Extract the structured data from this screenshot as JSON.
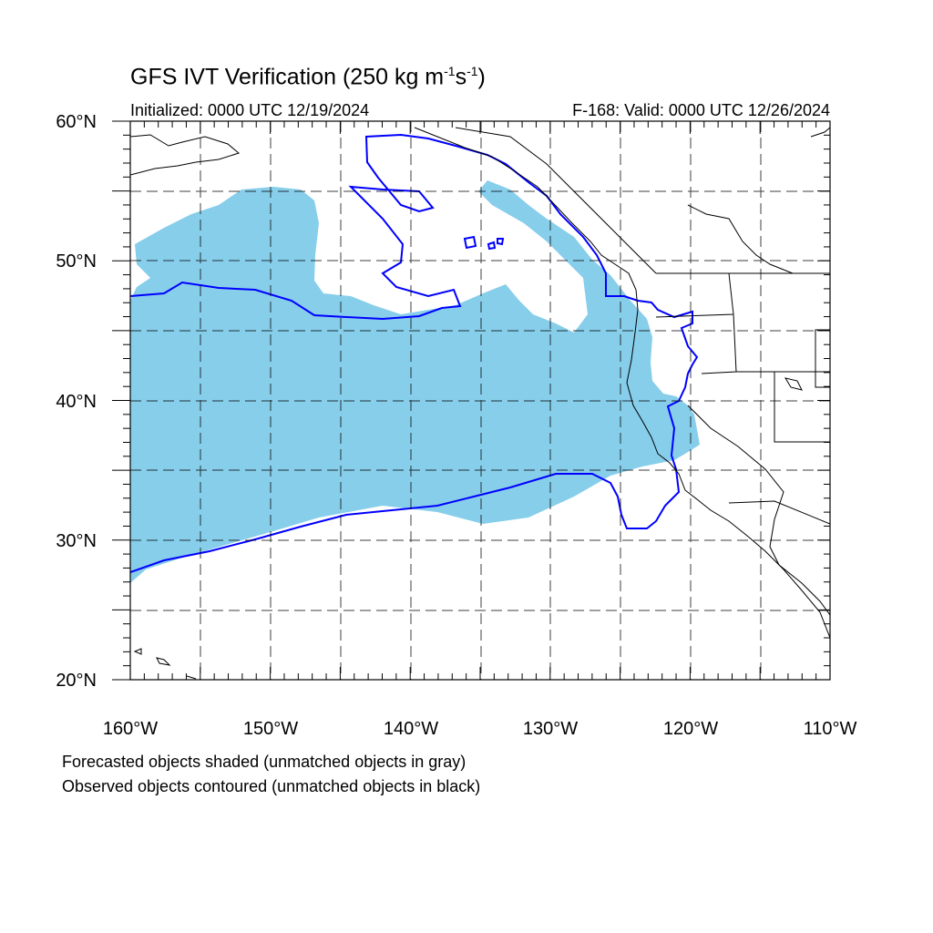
{
  "title": {
    "main": "GFS IVT Verification (250 kg m",
    "exp1": "-1",
    "mid": "s",
    "exp2": "-1",
    "tail": ")"
  },
  "init_label": "Initialized: 0000 UTC 12/19/2024",
  "valid_label": "F-168: Valid: 0000 UTC 12/26/2024",
  "notes": [
    "Forecasted objects shaded (unmatched objects in gray)",
    "Observed objects contoured (unmatched objects in black)"
  ],
  "map": {
    "lon_range": [
      -160,
      -110
    ],
    "lat_range": [
      20,
      60
    ],
    "lon_labels": [
      "160°W",
      "150°W",
      "140°W",
      "130°W",
      "120°W",
      "110°W"
    ],
    "lat_labels": [
      "60°N",
      "50°N",
      "40°N",
      "30°N",
      "20°N"
    ],
    "forecast_color": "#87ceeb",
    "observed_color": "#0000ff",
    "coast_color": "#000000"
  }
}
